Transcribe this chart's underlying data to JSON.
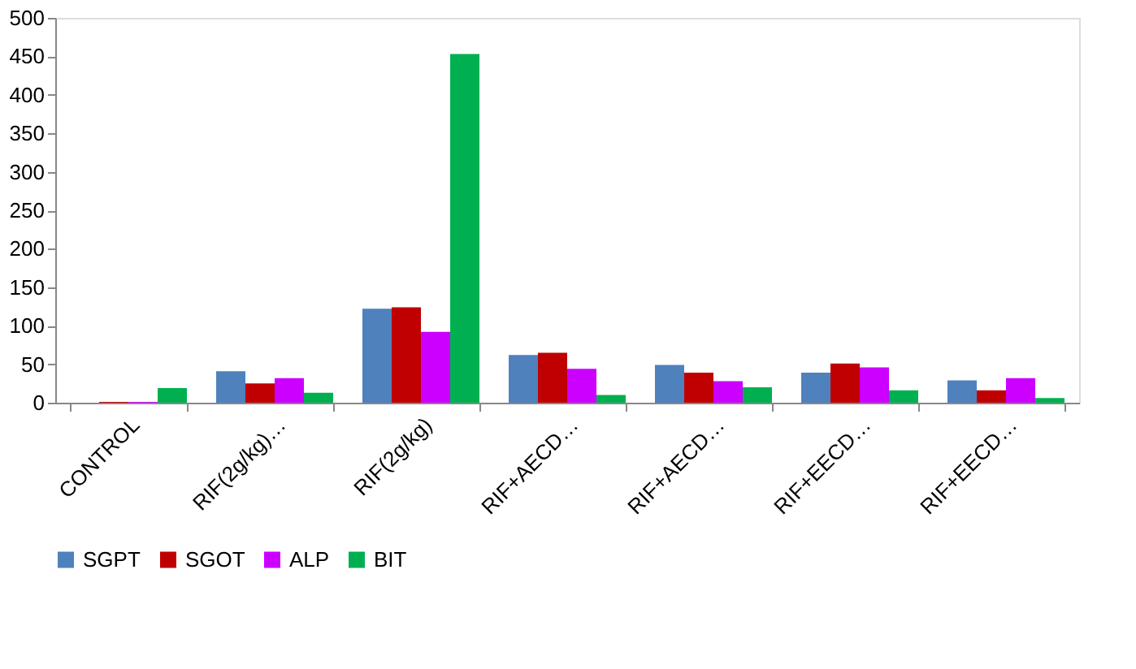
{
  "chart_data": {
    "type": "bar",
    "categories": [
      "CONTROL",
      "RIF(2g/kg)…",
      "RIF(2g/kg)",
      "RIF+AECD…",
      "RIF+AECD…",
      "RIF+EECD…",
      "RIF+EECD…"
    ],
    "series": [
      {
        "name": "SGPT",
        "color": "#4f81bd",
        "values": [
          null,
          41,
          122,
          62,
          49,
          39,
          29
        ]
      },
      {
        "name": "SGOT",
        "color": "#c00000",
        "values": [
          1,
          25,
          124,
          65,
          39,
          51,
          16
        ]
      },
      {
        "name": "ALP",
        "color": "#cc00ff",
        "values": [
          1,
          32,
          92,
          44,
          28,
          46,
          32
        ]
      },
      {
        "name": "BIT",
        "color": "#00b050",
        "values": [
          19,
          13,
          453,
          10,
          20,
          16,
          6
        ]
      }
    ],
    "ylim": [
      0,
      500
    ],
    "yticks": [
      0,
      50,
      100,
      150,
      200,
      250,
      300,
      350,
      400,
      450,
      500
    ],
    "grid": false,
    "legend": "bottom"
  }
}
